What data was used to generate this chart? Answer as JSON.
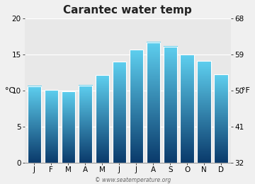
{
  "months": [
    "J",
    "F",
    "M",
    "A",
    "M",
    "J",
    "J",
    "A",
    "S",
    "O",
    "N",
    "D"
  ],
  "values_c": [
    10.6,
    10.1,
    9.9,
    10.7,
    12.1,
    14.0,
    15.7,
    16.7,
    16.1,
    15.0,
    14.1,
    12.2
  ],
  "title": "Carantec water temp",
  "ylabel_left": "°C",
  "ylabel_right": "°F",
  "yticks_c": [
    0,
    5,
    10,
    15,
    20
  ],
  "yticks_f": [
    32,
    41,
    50,
    59,
    68
  ],
  "ylim_c": [
    0,
    20
  ],
  "bar_color_top": "#5ecfef",
  "bar_color_mid": "#2a9fd0",
  "bar_color_bottom": "#0a3a6b",
  "fig_bg_color": "#f0f0f0",
  "plot_bg_color": "#e8e8e8",
  "grid_color": "#ffffff",
  "bar_edge_color": "#ffffff",
  "watermark": "© www.seatemperature.org",
  "title_fontsize": 11,
  "tick_fontsize": 7.5,
  "label_fontsize": 8,
  "bar_width": 0.82
}
